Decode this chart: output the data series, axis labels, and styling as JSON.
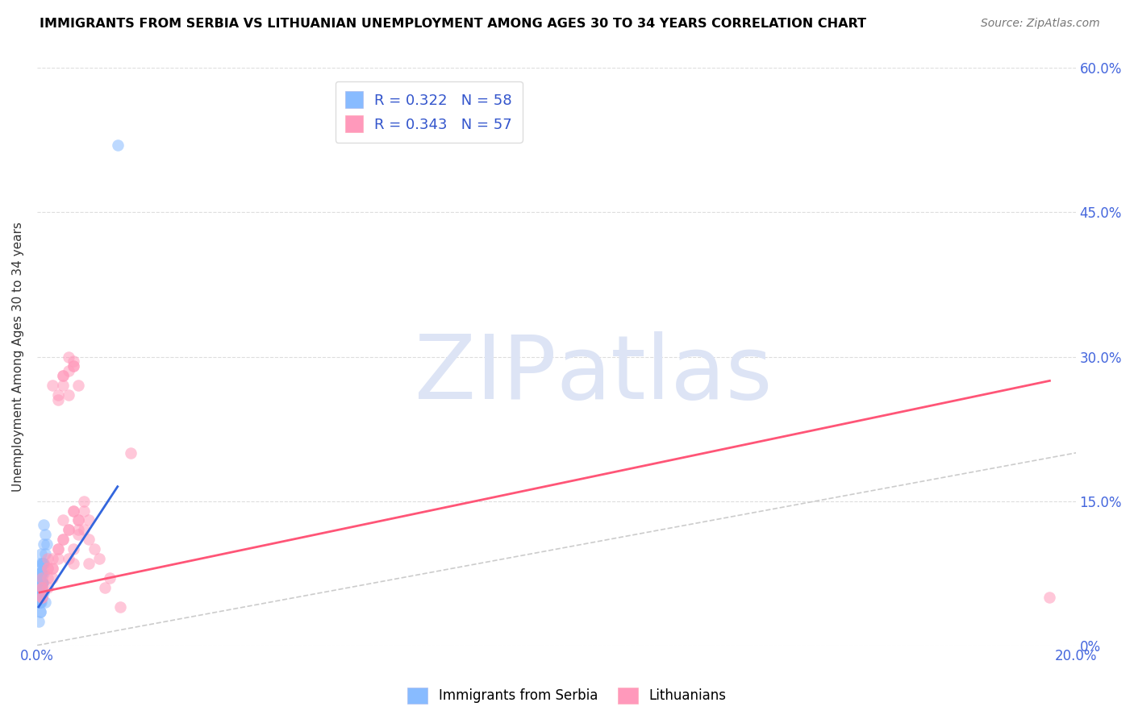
{
  "title": "IMMIGRANTS FROM SERBIA VS LITHUANIAN UNEMPLOYMENT AMONG AGES 30 TO 34 YEARS CORRELATION CHART",
  "source": "Source: ZipAtlas.com",
  "ylabel": "Unemployment Among Ages 30 to 34 years",
  "xlim": [
    0.0,
    0.2
  ],
  "ylim": [
    0.0,
    0.6
  ],
  "xticks": [
    0.0,
    0.05,
    0.1,
    0.15,
    0.2
  ],
  "yticks": [
    0.0,
    0.15,
    0.3,
    0.45,
    0.6
  ],
  "ytick_labels_right": [
    "0%",
    "15.0%",
    "30.0%",
    "45.0%",
    "60.0%"
  ],
  "xtick_labels": [
    "0.0%",
    "",
    "",
    "",
    "20.0%"
  ],
  "color_blue": "#88BBFF",
  "color_pink": "#FF99BB",
  "color_blue_line": "#3366DD",
  "color_pink_line": "#FF5577",
  "watermark_color": "#DDE4F5",
  "serbia_x": [
    0.0005,
    0.001,
    0.0008,
    0.0012,
    0.0006,
    0.0009,
    0.0007,
    0.0004,
    0.0011,
    0.0008,
    0.0013,
    0.0016,
    0.0005,
    0.0009,
    0.0007,
    0.0006,
    0.001,
    0.0005,
    0.0004,
    0.0008,
    0.0006,
    0.0009,
    0.0011,
    0.0005,
    0.0008,
    0.0006,
    0.0012,
    0.0005,
    0.0009,
    0.0006,
    0.0015,
    0.0008,
    0.0007,
    0.0011,
    0.0005,
    0.0009,
    0.0006,
    0.0005,
    0.0008,
    0.0005,
    0.0018,
    0.0012,
    0.0009,
    0.0005,
    0.0008,
    0.0005,
    0.0013,
    0.0005,
    0.0009,
    0.0005,
    0.0013,
    0.0016,
    0.0008,
    0.0005,
    0.0155,
    0.0003,
    0.0007,
    0.0003
  ],
  "serbia_y": [
    0.055,
    0.065,
    0.045,
    0.075,
    0.035,
    0.085,
    0.055,
    0.045,
    0.065,
    0.075,
    0.055,
    0.045,
    0.085,
    0.065,
    0.055,
    0.075,
    0.065,
    0.045,
    0.055,
    0.065,
    0.075,
    0.055,
    0.065,
    0.045,
    0.075,
    0.055,
    0.085,
    0.065,
    0.075,
    0.055,
    0.095,
    0.065,
    0.075,
    0.085,
    0.055,
    0.065,
    0.045,
    0.075,
    0.065,
    0.055,
    0.105,
    0.085,
    0.075,
    0.065,
    0.095,
    0.055,
    0.105,
    0.065,
    0.085,
    0.055,
    0.125,
    0.115,
    0.075,
    0.065,
    0.52,
    0.045,
    0.035,
    0.025
  ],
  "lithuanian_x": [
    0.001,
    0.002,
    0.001,
    0.003,
    0.002,
    0.001,
    0.004,
    0.003,
    0.002,
    0.001,
    0.005,
    0.004,
    0.003,
    0.002,
    0.001,
    0.006,
    0.004,
    0.003,
    0.005,
    0.002,
    0.007,
    0.005,
    0.004,
    0.006,
    0.003,
    0.007,
    0.005,
    0.006,
    0.004,
    0.007,
    0.008,
    0.006,
    0.005,
    0.007,
    0.008,
    0.006,
    0.009,
    0.007,
    0.008,
    0.005,
    0.01,
    0.008,
    0.007,
    0.009,
    0.006,
    0.01,
    0.008,
    0.009,
    0.011,
    0.007,
    0.012,
    0.01,
    0.014,
    0.013,
    0.016,
    0.018,
    0.195
  ],
  "lithuanian_y": [
    0.06,
    0.08,
    0.05,
    0.07,
    0.09,
    0.06,
    0.1,
    0.08,
    0.07,
    0.05,
    0.11,
    0.09,
    0.08,
    0.06,
    0.07,
    0.12,
    0.1,
    0.09,
    0.13,
    0.08,
    0.29,
    0.28,
    0.26,
    0.3,
    0.27,
    0.29,
    0.27,
    0.285,
    0.255,
    0.295,
    0.27,
    0.26,
    0.28,
    0.14,
    0.13,
    0.12,
    0.15,
    0.14,
    0.13,
    0.11,
    0.13,
    0.12,
    0.1,
    0.14,
    0.09,
    0.11,
    0.115,
    0.12,
    0.1,
    0.085,
    0.09,
    0.085,
    0.07,
    0.06,
    0.04,
    0.2,
    0.05
  ],
  "serbia_trendline_x": [
    0.0003,
    0.0155
  ],
  "serbia_trendline_y": [
    0.04,
    0.165
  ],
  "lithuanian_trendline_x": [
    0.0005,
    0.195
  ],
  "lithuanian_trendline_y": [
    0.055,
    0.275
  ]
}
